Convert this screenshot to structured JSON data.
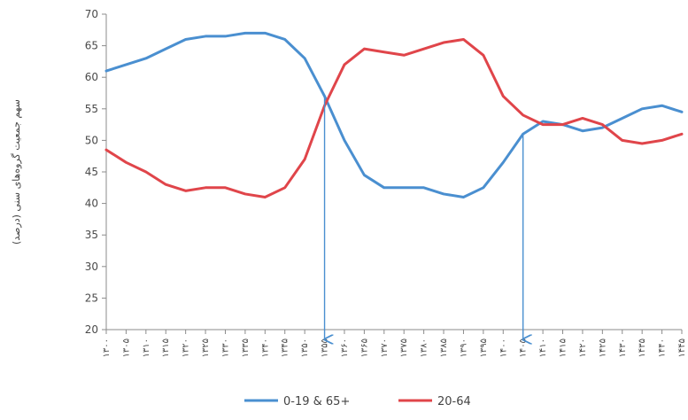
{
  "chart_data": {
    "type": "line",
    "title": "",
    "xlabel": "",
    "ylabel": "سهم جمعیت گروه‌های سنی (درصد)",
    "ylim": [
      20,
      70
    ],
    "yticks": [
      20,
      25,
      30,
      35,
      40,
      45,
      50,
      55,
      60,
      65,
      70
    ],
    "x": [
      1300,
      1305,
      1310,
      1315,
      1320,
      1325,
      1330,
      1335,
      1340,
      1345,
      1350,
      1355,
      1360,
      1365,
      1370,
      1375,
      1380,
      1385,
      1390,
      1395,
      1400,
      1405,
      1410,
      1415,
      1420,
      1425,
      1430,
      1435,
      1440,
      1445
    ],
    "xtick_labels": [
      "۱۳۰۰",
      "۱۳۰۵",
      "۱۳۱۰",
      "۱۳۱۵",
      "۱۳۲۰",
      "۱۳۲۵",
      "۱۳۳۰",
      "۱۳۳۵",
      "۱۳۴۰",
      "۱۳۴۵",
      "۱۳۵۰",
      "۱۳۵۵",
      "۱۳۶۰",
      "۱۳۶۵",
      "۱۳۷۰",
      "۱۳۷۵",
      "۱۳۸۰",
      "۱۳۸۵",
      "۱۳۹۰",
      "۱۳۹۵",
      "۱۴۰۰",
      "۱۴۰۵",
      "۱۴۱۰",
      "۱۴۱۵",
      "۱۴۲۰",
      "۱۴۲۵",
      "۱۴۳۰",
      "۱۴۳۵",
      "۱۴۴۰",
      "۱۴۴۵"
    ],
    "series": [
      {
        "name": "0-19 & 65+",
        "color": "#4a8fd0",
        "values": [
          61,
          62,
          63,
          64.5,
          66,
          66.5,
          66.5,
          67,
          67,
          66,
          63,
          57,
          50,
          44.5,
          42.5,
          42.5,
          42.5,
          41.5,
          41,
          42.5,
          46.5,
          51,
          53,
          52.5,
          51.5,
          52,
          53.5,
          55,
          55.5,
          54.5
        ]
      },
      {
        "name": "20-64",
        "color": "#e0454a",
        "values": [
          48.5,
          46.5,
          45,
          43,
          42,
          42.5,
          42.5,
          41.5,
          41,
          42.5,
          47,
          55.5,
          62,
          64.5,
          64,
          63.5,
          64.5,
          65.5,
          66,
          63.5,
          57,
          54,
          52.5,
          52.5,
          53.5,
          52.5,
          50,
          49.5,
          50,
          51
        ]
      }
    ],
    "annotations": [
      {
        "type": "arrow",
        "x_value": 1355,
        "color": "#4a8fd0"
      },
      {
        "type": "arrow",
        "x_value": 1405,
        "color": "#4a8fd0"
      }
    ],
    "grid": false,
    "legend_placement": "bottom-center"
  }
}
